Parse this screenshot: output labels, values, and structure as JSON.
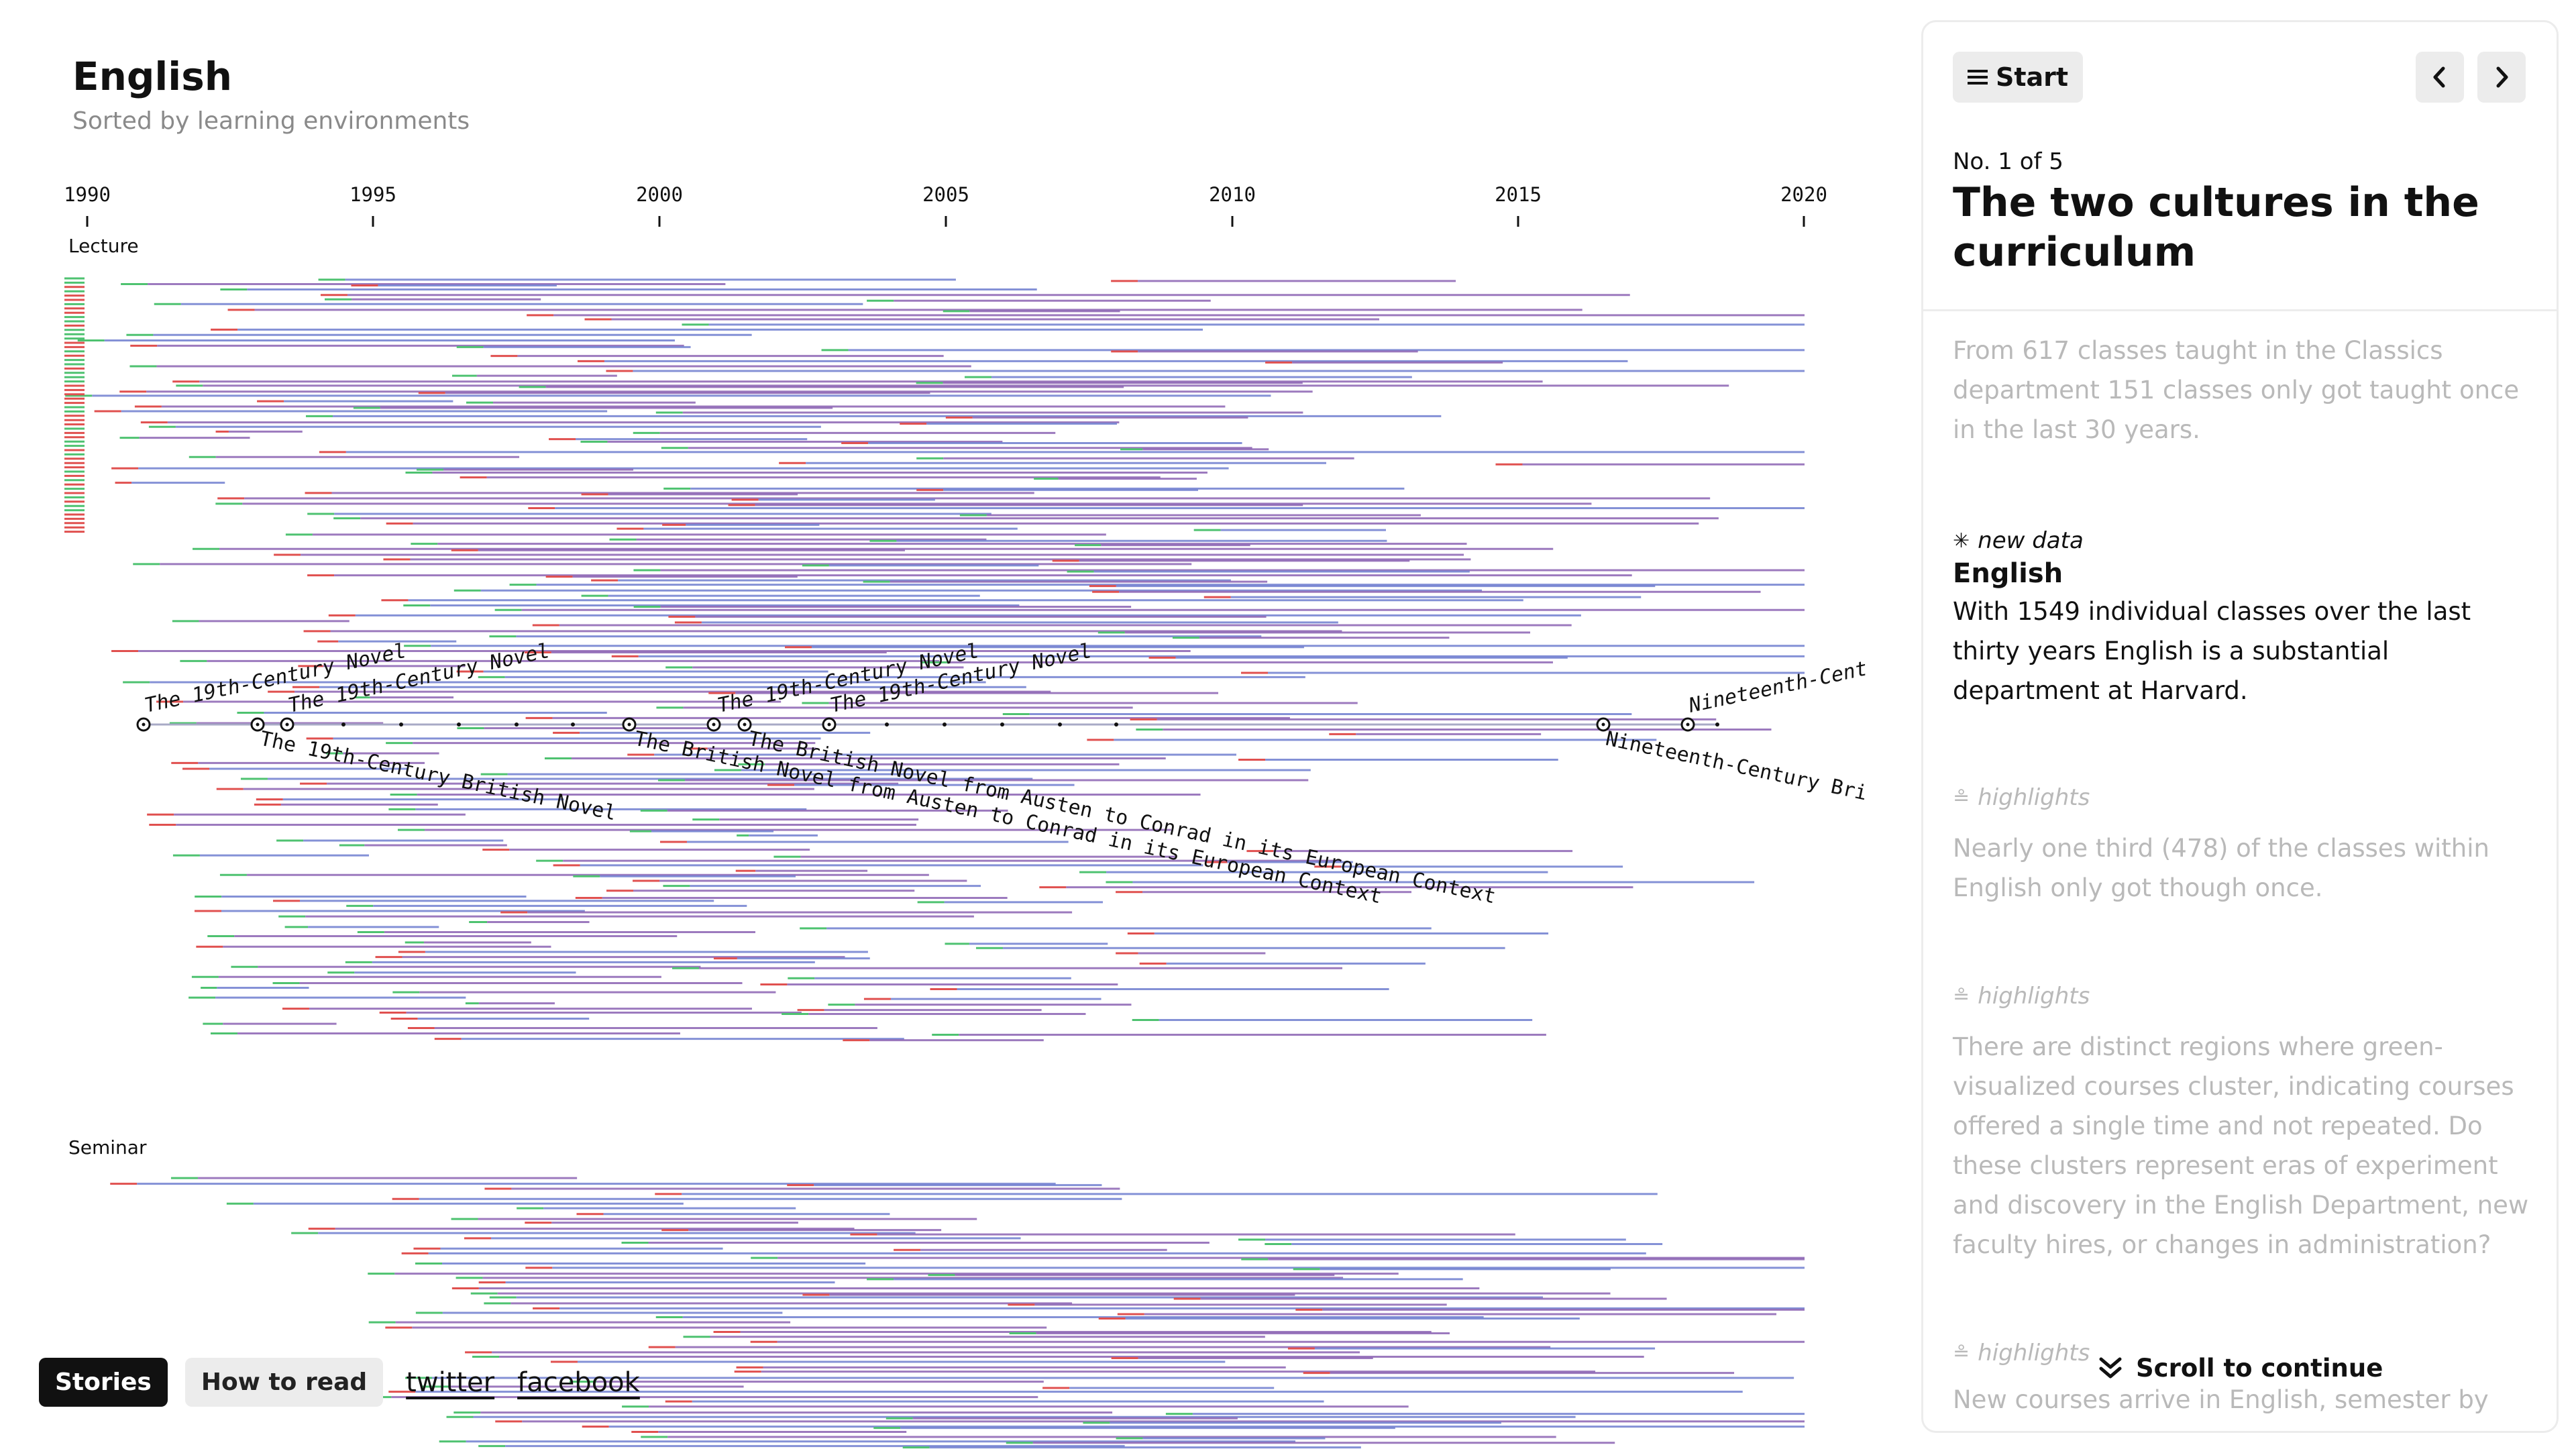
{
  "header": {
    "title": "English",
    "subtitle": "Sorted by learning environments"
  },
  "timeline": {
    "years": [
      "1990",
      "1995",
      "2000",
      "2005",
      "2010",
      "2015",
      "2020"
    ],
    "sections": [
      "Lecture",
      "Seminar"
    ],
    "highlight_titles": [
      "The 19th-Century Novel",
      "The 19th-Century Novel",
      "The 19th-Century British Novel",
      "The 19th-Century Novel",
      "The 19th-Century Novel",
      "The British Novel from Austen to Conrad in its European Context",
      "The British Novel from Austen to Conrad in its European Context",
      "Nineteenth-Cent",
      "Nineteenth-Century Bri"
    ]
  },
  "colors": {
    "line_blue": "#6f7ed0",
    "line_purple": "#8b63b3",
    "line_red": "#e0504f",
    "line_green": "#4ec270",
    "line_gray": "#a8aac6",
    "panel_border": "#ececec",
    "faded_text": "#b9b9b9"
  },
  "footer": {
    "stories_label": "Stories",
    "how_to_read_label": "How to read",
    "twitter_label": "twitter",
    "facebook_label": "facebook"
  },
  "panel": {
    "start_label": "Start",
    "story_count": "No. 1 of 5",
    "story_title": "The two cultures in the curriculum",
    "intro_text": "From 617 classes taught in the Classics department 151 classes only got taught once in the last 30 years.",
    "new_data_tag": "new data",
    "entry_title": "English",
    "entry_text": "With 1549 individual classes over the last thirty years English is a substantial department at Harvard.",
    "highlight_tag_1": "highlights",
    "highlight_text_1": "Nearly one third (478) of the classes within English only got though once.",
    "highlight_tag_2": "highlights",
    "highlight_text_2": "There are distinct regions where green-visualized courses cluster, indicating courses offered a single time and not repeated. Do these clusters represent eras of experiment and discovery in the English Department, new faculty hires, or changes in administration?",
    "highlight_tag_3": "highlights",
    "highlight_text_3": "New courses arrive in English, semester by",
    "scroll_label": "Scroll to continue"
  }
}
